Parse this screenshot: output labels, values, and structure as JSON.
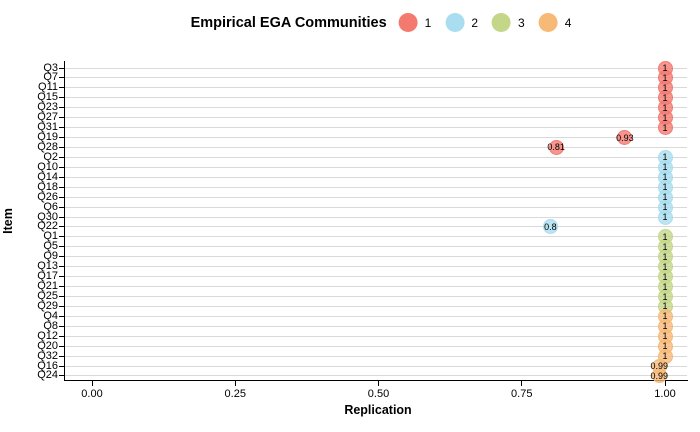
{
  "chart_data": {
    "type": "scatter",
    "title": "Empirical EGA Communities",
    "xlabel": "Replication",
    "ylabel": "Item",
    "xlim": [
      0,
      1.05
    ],
    "grid": "horizontal-only",
    "legend_position": "top",
    "x_ticks": [
      {
        "value": 0.0,
        "label": "0.00"
      },
      {
        "value": 0.25,
        "label": "0.25"
      },
      {
        "value": 0.5,
        "label": "0.50"
      },
      {
        "value": 0.75,
        "label": "0.75"
      },
      {
        "value": 1.0,
        "label": "1.00"
      }
    ],
    "communities": [
      {
        "id": 1,
        "label": "1",
        "color": "#F4796F"
      },
      {
        "id": 2,
        "label": "2",
        "color": "#A8DEEF"
      },
      {
        "id": 3,
        "label": "3",
        "color": "#C4D788"
      },
      {
        "id": 4,
        "label": "4",
        "color": "#F7B976"
      }
    ],
    "points": [
      {
        "item": "Q3",
        "community": 1,
        "replication": 1.0,
        "label": "1"
      },
      {
        "item": "Q7",
        "community": 1,
        "replication": 1.0,
        "label": "1"
      },
      {
        "item": "Q11",
        "community": 1,
        "replication": 1.0,
        "label": "1"
      },
      {
        "item": "Q15",
        "community": 1,
        "replication": 1.0,
        "label": "1"
      },
      {
        "item": "Q23",
        "community": 1,
        "replication": 1.0,
        "label": "1"
      },
      {
        "item": "Q27",
        "community": 1,
        "replication": 1.0,
        "label": "1"
      },
      {
        "item": "Q31",
        "community": 1,
        "replication": 1.0,
        "label": "1"
      },
      {
        "item": "Q19",
        "community": 1,
        "replication": 0.93,
        "label": "0.93"
      },
      {
        "item": "Q28",
        "community": 1,
        "replication": 0.81,
        "label": "0.81"
      },
      {
        "item": "Q2",
        "community": 2,
        "replication": 1.0,
        "label": "1"
      },
      {
        "item": "Q10",
        "community": 2,
        "replication": 1.0,
        "label": "1"
      },
      {
        "item": "Q14",
        "community": 2,
        "replication": 1.0,
        "label": "1"
      },
      {
        "item": "Q18",
        "community": 2,
        "replication": 1.0,
        "label": "1"
      },
      {
        "item": "Q26",
        "community": 2,
        "replication": 1.0,
        "label": "1"
      },
      {
        "item": "Q6",
        "community": 2,
        "replication": 1.0,
        "label": "1"
      },
      {
        "item": "Q30",
        "community": 2,
        "replication": 1.0,
        "label": "1"
      },
      {
        "item": "Q22",
        "community": 2,
        "replication": 0.8,
        "label": "0.8"
      },
      {
        "item": "Q1",
        "community": 3,
        "replication": 1.0,
        "label": "1"
      },
      {
        "item": "Q5",
        "community": 3,
        "replication": 1.0,
        "label": "1"
      },
      {
        "item": "Q9",
        "community": 3,
        "replication": 1.0,
        "label": "1"
      },
      {
        "item": "Q13",
        "community": 3,
        "replication": 1.0,
        "label": "1"
      },
      {
        "item": "Q17",
        "community": 3,
        "replication": 1.0,
        "label": "1"
      },
      {
        "item": "Q21",
        "community": 3,
        "replication": 1.0,
        "label": "1"
      },
      {
        "item": "Q25",
        "community": 3,
        "replication": 1.0,
        "label": "1"
      },
      {
        "item": "Q29",
        "community": 3,
        "replication": 1.0,
        "label": "1"
      },
      {
        "item": "Q4",
        "community": 4,
        "replication": 1.0,
        "label": "1"
      },
      {
        "item": "Q8",
        "community": 4,
        "replication": 1.0,
        "label": "1"
      },
      {
        "item": "Q12",
        "community": 4,
        "replication": 1.0,
        "label": "1"
      },
      {
        "item": "Q20",
        "community": 4,
        "replication": 1.0,
        "label": "1"
      },
      {
        "item": "Q32",
        "community": 4,
        "replication": 1.0,
        "label": "1"
      },
      {
        "item": "Q16",
        "community": 4,
        "replication": 0.99,
        "label": "0.99"
      },
      {
        "item": "Q24",
        "community": 4,
        "replication": 0.99,
        "label": "0.99"
      }
    ]
  }
}
